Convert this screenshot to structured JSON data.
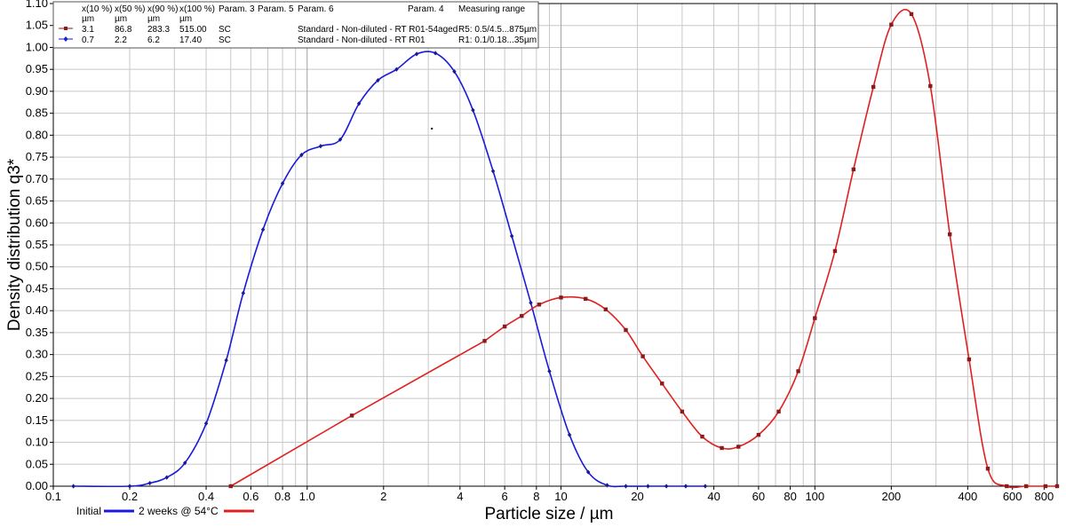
{
  "chart_data": {
    "type": "line",
    "xlabel": "Particle size / µm",
    "ylabel": "Density distribution q3*",
    "xscale": "log",
    "xlim": [
      0.1,
      900
    ],
    "ylim": [
      0,
      1.1
    ],
    "grid": true,
    "legend_position": "bottom-left",
    "x_tick_labels": [
      {
        "value": 0.1,
        "label": "0.1"
      },
      {
        "value": 0.2,
        "label": "0.2"
      },
      {
        "value": 0.4,
        "label": "0.4"
      },
      {
        "value": 0.6,
        "label": "0.6"
      },
      {
        "value": 0.8,
        "label": "0.8"
      },
      {
        "value": 1.0,
        "label": "1.0"
      },
      {
        "value": 2,
        "label": "2"
      },
      {
        "value": 4,
        "label": "4"
      },
      {
        "value": 6,
        "label": "6"
      },
      {
        "value": 8,
        "label": "8"
      },
      {
        "value": 10,
        "label": "10"
      },
      {
        "value": 20,
        "label": "20"
      },
      {
        "value": 40,
        "label": "40"
      },
      {
        "value": 60,
        "label": "60"
      },
      {
        "value": 80,
        "label": "80"
      },
      {
        "value": 100,
        "label": "100"
      },
      {
        "value": 200,
        "label": "200"
      },
      {
        "value": 400,
        "label": "400"
      },
      {
        "value": 600,
        "label": "600"
      },
      {
        "value": 800,
        "label": "800"
      }
    ],
    "y_tick_labels": [
      "0.00",
      "0.05",
      "0.10",
      "0.15",
      "0.20",
      "0.25",
      "0.30",
      "0.35",
      "0.40",
      "0.45",
      "0.50",
      "0.55",
      "0.60",
      "0.65",
      "0.70",
      "0.75",
      "0.80",
      "0.85",
      "0.90",
      "0.95",
      "1.00",
      "1.05",
      "1.10"
    ],
    "series": [
      {
        "name": "Initial",
        "color": "#1a1adc",
        "marker": "diamond",
        "points": [
          [
            0.12,
            0.0
          ],
          [
            0.2,
            0.0
          ],
          [
            0.24,
            0.007
          ],
          [
            0.28,
            0.02
          ],
          [
            0.33,
            0.053
          ],
          [
            0.4,
            0.143
          ],
          [
            0.48,
            0.287
          ],
          [
            0.56,
            0.44
          ],
          [
            0.67,
            0.585
          ],
          [
            0.8,
            0.69
          ],
          [
            0.95,
            0.755
          ],
          [
            1.13,
            0.775
          ],
          [
            1.35,
            0.79
          ],
          [
            1.6,
            0.872
          ],
          [
            1.9,
            0.925
          ],
          [
            2.25,
            0.95
          ],
          [
            2.7,
            0.985
          ],
          [
            3.2,
            0.987
          ],
          [
            3.8,
            0.945
          ],
          [
            4.5,
            0.857
          ],
          [
            5.4,
            0.718
          ],
          [
            6.4,
            0.57
          ],
          [
            7.6,
            0.418
          ],
          [
            9.0,
            0.262
          ],
          [
            10.8,
            0.117
          ],
          [
            12.8,
            0.032
          ],
          [
            15.2,
            0.002
          ],
          [
            18,
            0.0
          ],
          [
            22,
            0.0
          ],
          [
            26,
            0.0
          ],
          [
            31,
            0.0
          ],
          [
            37,
            0.0
          ]
        ],
        "stray_marker": [
          3.1,
          0.815
        ]
      },
      {
        "name": "2 weeks @ 54°C",
        "color": "#e02020",
        "marker": "square",
        "points": [
          [
            0.5,
            0.0
          ],
          [
            1.5,
            0.161
          ],
          [
            5.0,
            0.331
          ],
          [
            6.0,
            0.364
          ],
          [
            7.0,
            0.388
          ],
          [
            8.2,
            0.414
          ],
          [
            10.0,
            0.43
          ],
          [
            12.5,
            0.427
          ],
          [
            15,
            0.403
          ],
          [
            18,
            0.356
          ],
          [
            21,
            0.296
          ],
          [
            25,
            0.234
          ],
          [
            30,
            0.17
          ],
          [
            36,
            0.113
          ],
          [
            43,
            0.087
          ],
          [
            50,
            0.09
          ],
          [
            60,
            0.117
          ],
          [
            72,
            0.17
          ],
          [
            86,
            0.262
          ],
          [
            100,
            0.383
          ],
          [
            120,
            0.536
          ],
          [
            142,
            0.722
          ],
          [
            170,
            0.91
          ],
          [
            200,
            1.052
          ],
          [
            240,
            1.076
          ],
          [
            285,
            0.912
          ],
          [
            340,
            0.574
          ],
          [
            405,
            0.289
          ],
          [
            480,
            0.04
          ],
          [
            570,
            0.0
          ],
          [
            680,
            0.0
          ],
          [
            810,
            0.0
          ],
          [
            900,
            0.0
          ]
        ]
      }
    ]
  },
  "table_legend": {
    "header_row1": [
      "x(10 %)",
      "x(50 %)",
      "x(90 %)",
      "x(100 %)",
      "Param. 3",
      "Param. 5",
      "Param. 6",
      "Param. 4",
      "Measuring range"
    ],
    "header_row2": [
      "µm",
      "µm",
      "µm",
      "µm"
    ],
    "rows": [
      {
        "color": "#8b1a1a",
        "marker": "square",
        "values": [
          "3.1",
          "86.8",
          "283.3",
          "515.00",
          "SC"
        ],
        "param4": "Standard - Non-diluted - RT R01-54aged",
        "range": "R5: 0.5/4.5...875µm"
      },
      {
        "color": "#1a1adc",
        "marker": "diamond",
        "values": [
          "0.7",
          "2.2",
          "6.2",
          "17.40",
          "SC"
        ],
        "param4": "Standard - Non-diluted - RT R01",
        "range": "R1: 0.1/0.18...35µm"
      }
    ]
  },
  "bottom_legend": [
    {
      "label": "Initial",
      "color": "#1a1adc"
    },
    {
      "label": "2 weeks @ 54°C",
      "color": "#e02020"
    }
  ]
}
